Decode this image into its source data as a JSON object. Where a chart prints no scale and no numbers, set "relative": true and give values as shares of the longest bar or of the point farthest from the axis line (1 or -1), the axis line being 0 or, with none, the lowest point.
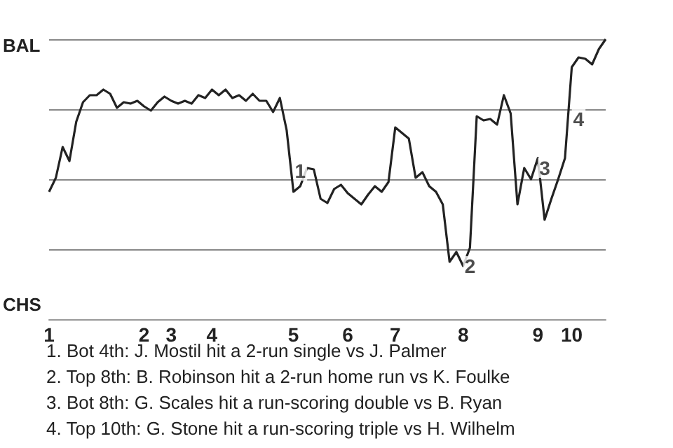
{
  "chart_data": {
    "type": "line",
    "relative": true,
    "grid": "y",
    "marker": "none",
    "line_style": "solid",
    "categories": [
      "1",
      null,
      null,
      null,
      null,
      null,
      null,
      null,
      null,
      null,
      null,
      null,
      null,
      null,
      "2",
      null,
      null,
      null,
      "3",
      null,
      null,
      null,
      null,
      null,
      "4",
      null,
      null,
      null,
      null,
      null,
      null,
      null,
      null,
      null,
      null,
      null,
      "5",
      null,
      null,
      null,
      null,
      null,
      null,
      null,
      "6",
      null,
      null,
      null,
      null,
      null,
      null,
      "7",
      null,
      null,
      null,
      null,
      null,
      null,
      null,
      null,
      null,
      "8",
      null,
      null,
      null,
      null,
      null,
      null,
      null,
      null,
      null,
      null,
      "9",
      null,
      null,
      null,
      null,
      "10",
      null,
      null,
      null,
      null,
      null
    ],
    "series": [
      {
        "color": "#222222",
        "values": [
          0.455,
          0.505,
          0.615,
          0.565,
          0.705,
          0.775,
          0.8,
          0.8,
          0.82,
          0.805,
          0.755,
          0.775,
          0.77,
          0.78,
          0.76,
          0.745,
          0.775,
          0.795,
          0.78,
          0.77,
          0.78,
          0.77,
          0.8,
          0.79,
          0.82,
          0.8,
          0.82,
          0.79,
          0.8,
          0.78,
          0.805,
          0.78,
          0.78,
          0.74,
          0.79,
          0.675,
          0.455,
          0.475,
          0.54,
          0.535,
          0.43,
          0.415,
          0.465,
          0.48,
          0.45,
          0.43,
          0.41,
          0.445,
          0.475,
          0.455,
          0.49,
          0.685,
          0.665,
          0.645,
          0.505,
          0.525,
          0.475,
          0.455,
          0.41,
          0.205,
          0.24,
          0.19,
          0.255,
          0.725,
          0.71,
          0.715,
          0.695,
          0.8,
          0.735,
          0.41,
          0.54,
          0.5,
          0.575,
          0.355,
          0.43,
          0.5,
          0.575,
          0.9,
          0.935,
          0.93,
          0.91,
          0.965,
          1
        ],
        "name": null
      }
    ],
    "annotations": [
      {
        "text": "1",
        "x": "5",
        "y": 0.53
      },
      {
        "text": "2",
        "x": "8",
        "y": 0.19
      },
      {
        "text": "3",
        "x": "9",
        "y": 0.54
      },
      {
        "text": "4",
        "x": "10",
        "y": 0.715
      },
      "BAL",
      "CHS",
      "1. Bot 4th: J. Mostil hit a 2-run single vs J. Palmer",
      "2. Top 8th: B. Robinson hit a 2-run home run vs K. Foulke",
      "3. Bot 8th: G. Scales hit a run-scoring double vs B. Ryan",
      "4. Top 10th: G. Stone hit a run-scoring triple vs H. Wilhelm"
    ]
  }
}
